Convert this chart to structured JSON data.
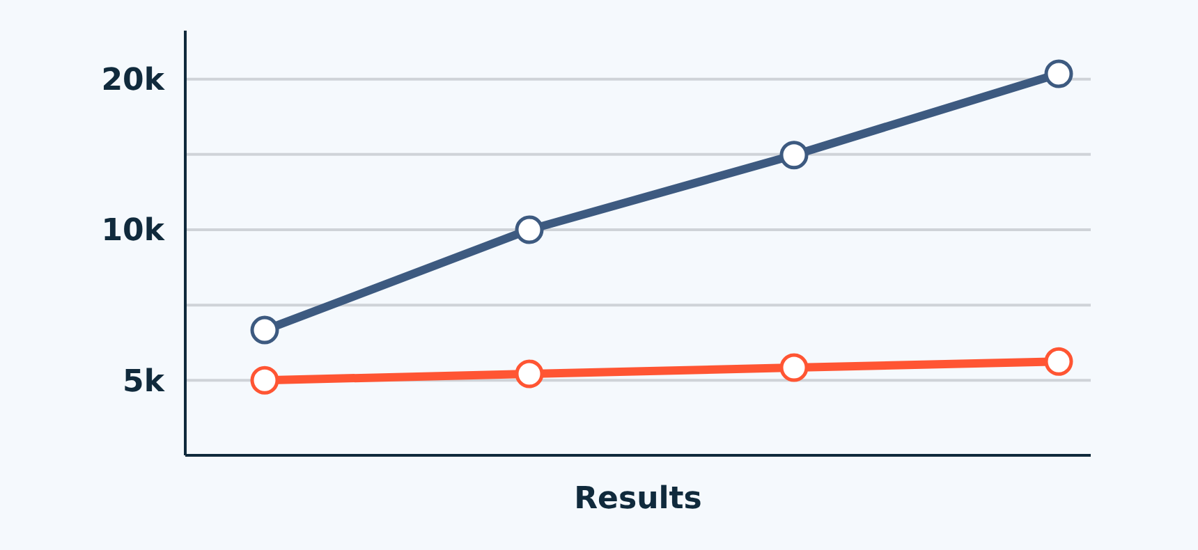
{
  "chart_data": {
    "type": "line",
    "xlabel": "Results",
    "categories": [
      null,
      null,
      null,
      null
    ],
    "series": [
      {
        "color": "#3d5a80",
        "values": [
          6300,
          10000,
          14100,
          20500
        ]
      },
      {
        "color": "#ff5533",
        "values": [
          5000,
          5150,
          5300,
          5450
        ]
      }
    ],
    "log": "y",
    "ylim": [
      3540,
      25000
    ],
    "yticks": [
      {
        "value": 5000,
        "label": "5k"
      },
      {
        "value": 7070,
        "label": null
      },
      {
        "value": 10000,
        "label": "10k"
      },
      {
        "value": 14140,
        "label": null
      },
      {
        "value": 20000,
        "label": "20k"
      }
    ],
    "grid": "y",
    "tick_labels": "y",
    "marker": "circle",
    "line_style": "solid"
  }
}
